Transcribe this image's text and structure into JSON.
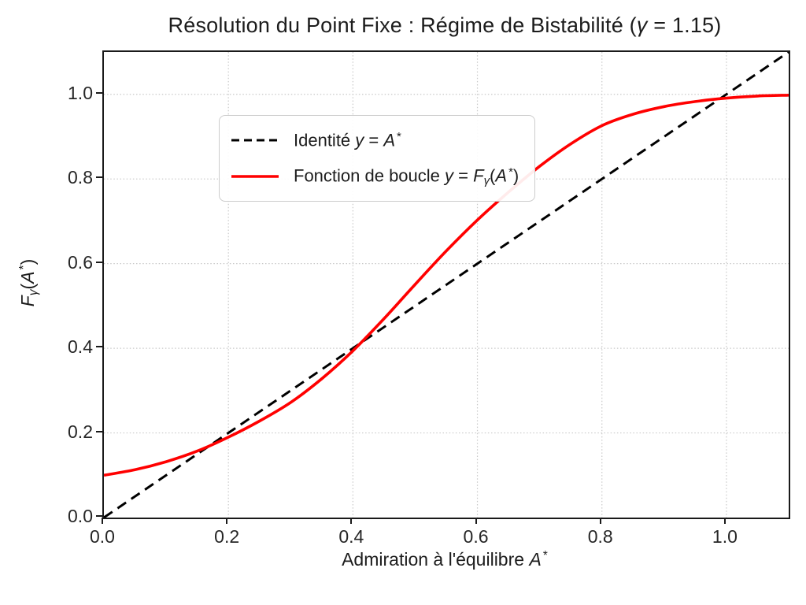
{
  "style": {
    "background": "#ffffff",
    "spine_color": "#1a1a1a",
    "grid_color": "#c9c9c9",
    "text_color": "#1c1c1c",
    "legend_border": "#cccccc",
    "identity_color": "#000000",
    "curve_color": "#ff0000"
  },
  "labels": {
    "title_segments": [
      {
        "text": "Résolution du Point Fixe : Régime de Bistabilité (",
        "style": "n"
      },
      {
        "text": "γ",
        "style": "i"
      },
      {
        "text": " = 1.15)",
        "style": "n"
      }
    ],
    "xlabel_segments": [
      {
        "text": "Admiration à l'équilibre ",
        "style": "n"
      },
      {
        "text": "A",
        "style": "i"
      },
      {
        "text": "*",
        "style": "sup"
      }
    ],
    "ylabel_segments": [
      {
        "text": "F",
        "style": "i"
      },
      {
        "text": "γ",
        "style": "sub"
      },
      {
        "text": "(",
        "style": "n"
      },
      {
        "text": "A",
        "style": "i"
      },
      {
        "text": "*",
        "style": "sup"
      },
      {
        "text": ")",
        "style": "n"
      }
    ]
  },
  "legend": {
    "entries": [
      {
        "id": "identity",
        "sample": {
          "color": "#000000",
          "dashed": true,
          "width": 3
        },
        "segments": [
          {
            "text": "Identité ",
            "style": "n"
          },
          {
            "text": "y",
            "style": "i"
          },
          {
            "text": " = ",
            "style": "n"
          },
          {
            "text": "A",
            "style": "i"
          },
          {
            "text": "*",
            "style": "sup"
          }
        ]
      },
      {
        "id": "loop-function",
        "sample": {
          "color": "#ff0000",
          "dashed": false,
          "width": 3.5
        },
        "segments": [
          {
            "text": "Fonction de boucle ",
            "style": "n"
          },
          {
            "text": "y",
            "style": "i"
          },
          {
            "text": " = ",
            "style": "n"
          },
          {
            "text": "F",
            "style": "i"
          },
          {
            "text": "γ",
            "style": "sub"
          },
          {
            "text": "(",
            "style": "n"
          },
          {
            "text": "A",
            "style": "i"
          },
          {
            "text": "*",
            "style": "sup"
          },
          {
            "text": ")",
            "style": "n"
          }
        ]
      }
    ]
  },
  "chart_data": {
    "type": "line",
    "title": "Résolution du Point Fixe : Régime de Bistabilité (γ = 1.15)",
    "xlabel": "Admiration à l'équilibre A*",
    "ylabel": "Fγ(A*)",
    "xlim": [
      0,
      1.1
    ],
    "ylim": [
      0,
      1.1
    ],
    "grid": "dotted",
    "legend_position": "upper left",
    "x_ticks": {
      "values": [
        0.0,
        0.2,
        0.4,
        0.6,
        0.8,
        1.0
      ],
      "labels": [
        "0.0",
        "0.2",
        "0.4",
        "0.6",
        "0.8",
        "1.0"
      ]
    },
    "y_ticks": {
      "values": [
        0.0,
        0.2,
        0.4,
        0.6,
        0.8,
        1.0
      ],
      "labels": [
        "0.0",
        "0.2",
        "0.4",
        "0.6",
        "0.8",
        "1.0"
      ]
    },
    "series": [
      {
        "id": "identity",
        "name": "Identité y = A*",
        "color": "#000000",
        "line_style": "dashed",
        "line_width": 3,
        "x": [
          0,
          1.1
        ],
        "y": [
          0,
          1.1
        ]
      },
      {
        "id": "loop-function",
        "name": "Fonction de boucle y = Fγ(A*)",
        "color": "#ff0000",
        "line_style": "solid",
        "line_width": 3.6,
        "x": [
          0.0,
          0.05,
          0.1,
          0.15,
          0.2,
          0.25,
          0.3,
          0.35,
          0.4,
          0.45,
          0.5,
          0.55,
          0.6,
          0.65,
          0.7,
          0.75,
          0.8,
          0.85,
          0.9,
          0.95,
          1.0,
          1.05,
          1.1
        ],
        "y": [
          0.1,
          0.113,
          0.132,
          0.157,
          0.19,
          0.228,
          0.272,
          0.328,
          0.394,
          0.47,
          0.551,
          0.63,
          0.703,
          0.769,
          0.83,
          0.883,
          0.926,
          0.953,
          0.971,
          0.983,
          0.991,
          0.996,
          0.998
        ]
      }
    ],
    "approx_fixed_points_x": [
      0.17,
      0.44,
      0.98
    ]
  }
}
